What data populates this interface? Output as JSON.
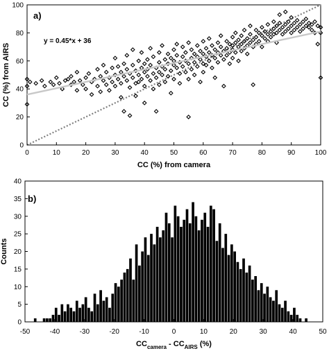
{
  "chart_data": [
    {
      "type": "scatter",
      "panel_label": "a)",
      "xlabel": "CC (%) from camera",
      "ylabel": "CC (%) from AIRS",
      "xlim": [
        0,
        100
      ],
      "ylim": [
        0,
        100
      ],
      "xticks": [
        0,
        10,
        20,
        30,
        40,
        50,
        60,
        70,
        80,
        90,
        100
      ],
      "yticks": [
        0,
        20,
        40,
        60,
        80,
        100
      ],
      "annotation": "y = 0.45*x + 36",
      "fit_line": {
        "slope": 0.45,
        "intercept": 36,
        "color": "#c8c8c8"
      },
      "reference_line": {
        "slope": 1,
        "intercept": 0,
        "style": "dotted",
        "color": "#808080"
      },
      "marker": "diamond-open",
      "grid": false,
      "series": [
        {
          "points": [
            [
              0,
              29
            ],
            [
              0,
              42
            ],
            [
              0,
              47
            ],
            [
              1,
              45
            ],
            [
              3,
              44
            ],
            [
              5,
              46
            ],
            [
              6,
              42
            ],
            [
              8,
              45
            ],
            [
              9,
              43
            ],
            [
              10,
              48
            ],
            [
              11,
              44
            ],
            [
              12,
              40
            ],
            [
              13,
              46
            ],
            [
              14,
              47
            ],
            [
              15,
              43
            ],
            [
              15,
              49
            ],
            [
              16,
              45
            ],
            [
              17,
              39
            ],
            [
              17,
              52
            ],
            [
              18,
              46
            ],
            [
              19,
              43
            ],
            [
              20,
              48
            ],
            [
              20,
              40
            ],
            [
              21,
              51
            ],
            [
              22,
              45
            ],
            [
              22,
              36
            ],
            [
              23,
              47
            ],
            [
              24,
              42
            ],
            [
              24,
              54
            ],
            [
              25,
              49
            ],
            [
              25,
              38
            ],
            [
              26,
              46
            ],
            [
              26,
              57
            ],
            [
              27,
              43
            ],
            [
              27,
              52
            ],
            [
              28,
              48
            ],
            [
              28,
              39
            ],
            [
              29,
              55
            ],
            [
              29,
              45
            ],
            [
              30,
              50
            ],
            [
              30,
              62
            ],
            [
              30,
              42
            ],
            [
              31,
              47
            ],
            [
              31,
              56
            ],
            [
              32,
              44
            ],
            [
              32,
              52
            ],
            [
              32,
              34
            ],
            [
              33,
              49
            ],
            [
              33,
              58
            ],
            [
              33,
              24
            ],
            [
              34,
              46
            ],
            [
              34,
              54
            ],
            [
              34,
              64
            ],
            [
              35,
              41
            ],
            [
              35,
              51
            ],
            [
              35,
              21
            ],
            [
              36,
              48
            ],
            [
              36,
              57
            ],
            [
              36,
              68
            ],
            [
              37,
              44
            ],
            [
              37,
              53
            ],
            [
              37,
              35
            ],
            [
              38,
              50
            ],
            [
              38,
              60
            ],
            [
              38,
              45
            ],
            [
              39,
              47
            ],
            [
              39,
              55
            ],
            [
              39,
              66
            ],
            [
              40,
              52
            ],
            [
              40,
              42
            ],
            [
              40,
              58
            ],
            [
              40,
              30
            ],
            [
              41,
              49
            ],
            [
              41,
              61
            ],
            [
              41,
              54
            ],
            [
              42,
              46
            ],
            [
              42,
              57
            ],
            [
              42,
              69
            ],
            [
              43,
              51
            ],
            [
              43,
              40
            ],
            [
              43,
              63
            ],
            [
              44,
              55
            ],
            [
              44,
              48
            ],
            [
              44,
              24
            ],
            [
              45,
              59
            ],
            [
              45,
              52
            ],
            [
              45,
              66
            ],
            [
              45,
              43
            ],
            [
              46,
              56
            ],
            [
              46,
              50
            ],
            [
              46,
              71
            ],
            [
              47,
              61
            ],
            [
              47,
              45
            ],
            [
              47,
              54
            ],
            [
              48,
              58
            ],
            [
              48,
              65
            ],
            [
              48,
              49
            ],
            [
              49,
              53
            ],
            [
              49,
              62
            ],
            [
              49,
              37
            ],
            [
              50,
              57
            ],
            [
              50,
              68
            ],
            [
              50,
              47
            ],
            [
              50,
              60
            ],
            [
              51,
              55
            ],
            [
              51,
              64
            ],
            [
              51,
              72
            ],
            [
              52,
              51
            ],
            [
              52,
              59
            ],
            [
              52,
              44
            ],
            [
              53,
              63
            ],
            [
              53,
              56
            ],
            [
              53,
              70
            ],
            [
              54,
              52
            ],
            [
              54,
              66
            ],
            [
              54,
              60
            ],
            [
              55,
              58
            ],
            [
              55,
              47
            ],
            [
              55,
              73
            ],
            [
              55,
              20
            ],
            [
              56,
              62
            ],
            [
              56,
              54
            ],
            [
              56,
              68
            ],
            [
              57,
              59
            ],
            [
              57,
              65
            ],
            [
              57,
              50
            ],
            [
              58,
              63
            ],
            [
              58,
              71
            ],
            [
              58,
              56
            ],
            [
              59,
              61
            ],
            [
              59,
              67
            ],
            [
              59,
              45
            ],
            [
              60,
              58
            ],
            [
              60,
              65
            ],
            [
              60,
              74
            ],
            [
              60,
              52
            ],
            [
              61,
              63
            ],
            [
              61,
              69
            ],
            [
              61,
              57
            ],
            [
              62,
              66
            ],
            [
              62,
              60
            ],
            [
              62,
              76
            ],
            [
              63,
              64
            ],
            [
              63,
              55
            ],
            [
              63,
              71
            ],
            [
              64,
              62
            ],
            [
              64,
              68
            ],
            [
              64,
              48
            ],
            [
              65,
              66
            ],
            [
              65,
              73
            ],
            [
              65,
              59
            ],
            [
              66,
              64
            ],
            [
              66,
              70
            ],
            [
              66,
              78
            ],
            [
              67,
              67
            ],
            [
              67,
              61
            ],
            [
              67,
              42
            ],
            [
              68,
              69
            ],
            [
              68,
              74
            ],
            [
              68,
              64
            ],
            [
              69,
              66
            ],
            [
              69,
              72
            ],
            [
              69,
              58
            ],
            [
              70,
              71
            ],
            [
              70,
              68
            ],
            [
              70,
              77
            ],
            [
              70,
              62
            ],
            [
              71,
              73
            ],
            [
              71,
              66
            ],
            [
              71,
              80
            ],
            [
              72,
              70
            ],
            [
              72,
              75
            ],
            [
              72,
              60
            ],
            [
              73,
              72
            ],
            [
              73,
              78
            ],
            [
              73,
              67
            ],
            [
              74,
              74
            ],
            [
              74,
              69
            ],
            [
              74,
              82
            ],
            [
              75,
              76
            ],
            [
              75,
              71
            ],
            [
              75,
              65
            ],
            [
              76,
              73
            ],
            [
              76,
              79
            ],
            [
              76,
              85
            ],
            [
              77,
              75
            ],
            [
              77,
              70
            ],
            [
              77,
              43
            ],
            [
              78,
              77
            ],
            [
              78,
              82
            ],
            [
              78,
              72
            ],
            [
              79,
              74
            ],
            [
              79,
              80
            ],
            [
              80,
              78
            ],
            [
              80,
              84
            ],
            [
              80,
              70
            ],
            [
              81,
              76
            ],
            [
              81,
              81
            ],
            [
              82,
              79
            ],
            [
              82,
              86
            ],
            [
              82,
              74
            ],
            [
              83,
              81
            ],
            [
              83,
              77
            ],
            [
              84,
              83
            ],
            [
              84,
              79
            ],
            [
              84,
              88
            ],
            [
              85,
              80
            ],
            [
              85,
              85
            ],
            [
              85,
              73
            ],
            [
              86,
              82
            ],
            [
              86,
              87
            ],
            [
              86,
              93
            ],
            [
              87,
              84
            ],
            [
              87,
              79
            ],
            [
              88,
              86
            ],
            [
              88,
              81
            ],
            [
              88,
              95
            ],
            [
              89,
              83
            ],
            [
              89,
              88
            ],
            [
              90,
              85
            ],
            [
              90,
              80
            ],
            [
              90,
              91
            ],
            [
              91,
              87
            ],
            [
              91,
              82
            ],
            [
              92,
              84
            ],
            [
              92,
              89
            ],
            [
              93,
              86
            ],
            [
              93,
              81
            ],
            [
              94,
              88
            ],
            [
              94,
              83
            ],
            [
              95,
              85
            ],
            [
              95,
              90
            ],
            [
              96,
              84
            ],
            [
              96,
              87
            ],
            [
              97,
              82
            ],
            [
              97,
              86
            ],
            [
              98,
              88
            ],
            [
              98,
              80
            ],
            [
              99,
              85
            ],
            [
              99,
              72
            ],
            [
              100,
              48
            ],
            [
              100,
              80
            ],
            [
              100,
              84
            ]
          ]
        }
      ]
    },
    {
      "type": "bar",
      "panel_label": "b)",
      "xlabel": "CCcamera - CCAIRS (%)",
      "xlabel_parts": {
        "main1": "CC",
        "sub1": "camera",
        "mid": " - CC",
        "sub2": "AIRS",
        "tail": " (%)"
      },
      "ylabel": "Counts",
      "xlim": [
        -50,
        50
      ],
      "ylim": [
        0,
        40
      ],
      "xticks": [
        -50,
        -40,
        -30,
        -20,
        -10,
        0,
        10,
        20,
        30,
        40,
        50
      ],
      "yticks": [
        0,
        5,
        10,
        15,
        20,
        25,
        30,
        35,
        40
      ],
      "bin_width": 1,
      "grid": false,
      "bar_color": "#000000",
      "bins_start": -47,
      "counts": [
        1,
        0,
        0,
        1,
        1,
        1,
        2,
        4,
        2,
        5,
        3,
        5,
        4,
        3,
        6,
        4,
        5,
        7,
        4,
        3,
        8,
        5,
        9,
        6,
        7,
        4,
        8,
        11,
        10,
        12,
        14,
        15,
        18,
        12,
        22,
        16,
        20,
        24,
        19,
        25,
        22,
        27,
        24,
        26,
        31,
        28,
        24,
        33,
        30,
        27,
        29,
        32,
        28,
        34,
        30,
        26,
        29,
        31,
        27,
        33,
        32,
        23,
        28,
        21,
        25,
        19,
        22,
        20,
        17,
        15,
        18,
        14,
        16,
        12,
        13,
        9,
        11,
        8,
        10,
        7,
        6,
        9,
        5,
        4,
        6,
        3,
        2,
        4,
        2,
        1,
        0,
        1,
        0,
        0,
        0,
        0,
        0,
        0,
        0,
        0,
        0,
        0,
        0,
        0,
        0,
        0,
        1
      ],
      "extra_counts_note": ""
    }
  ]
}
